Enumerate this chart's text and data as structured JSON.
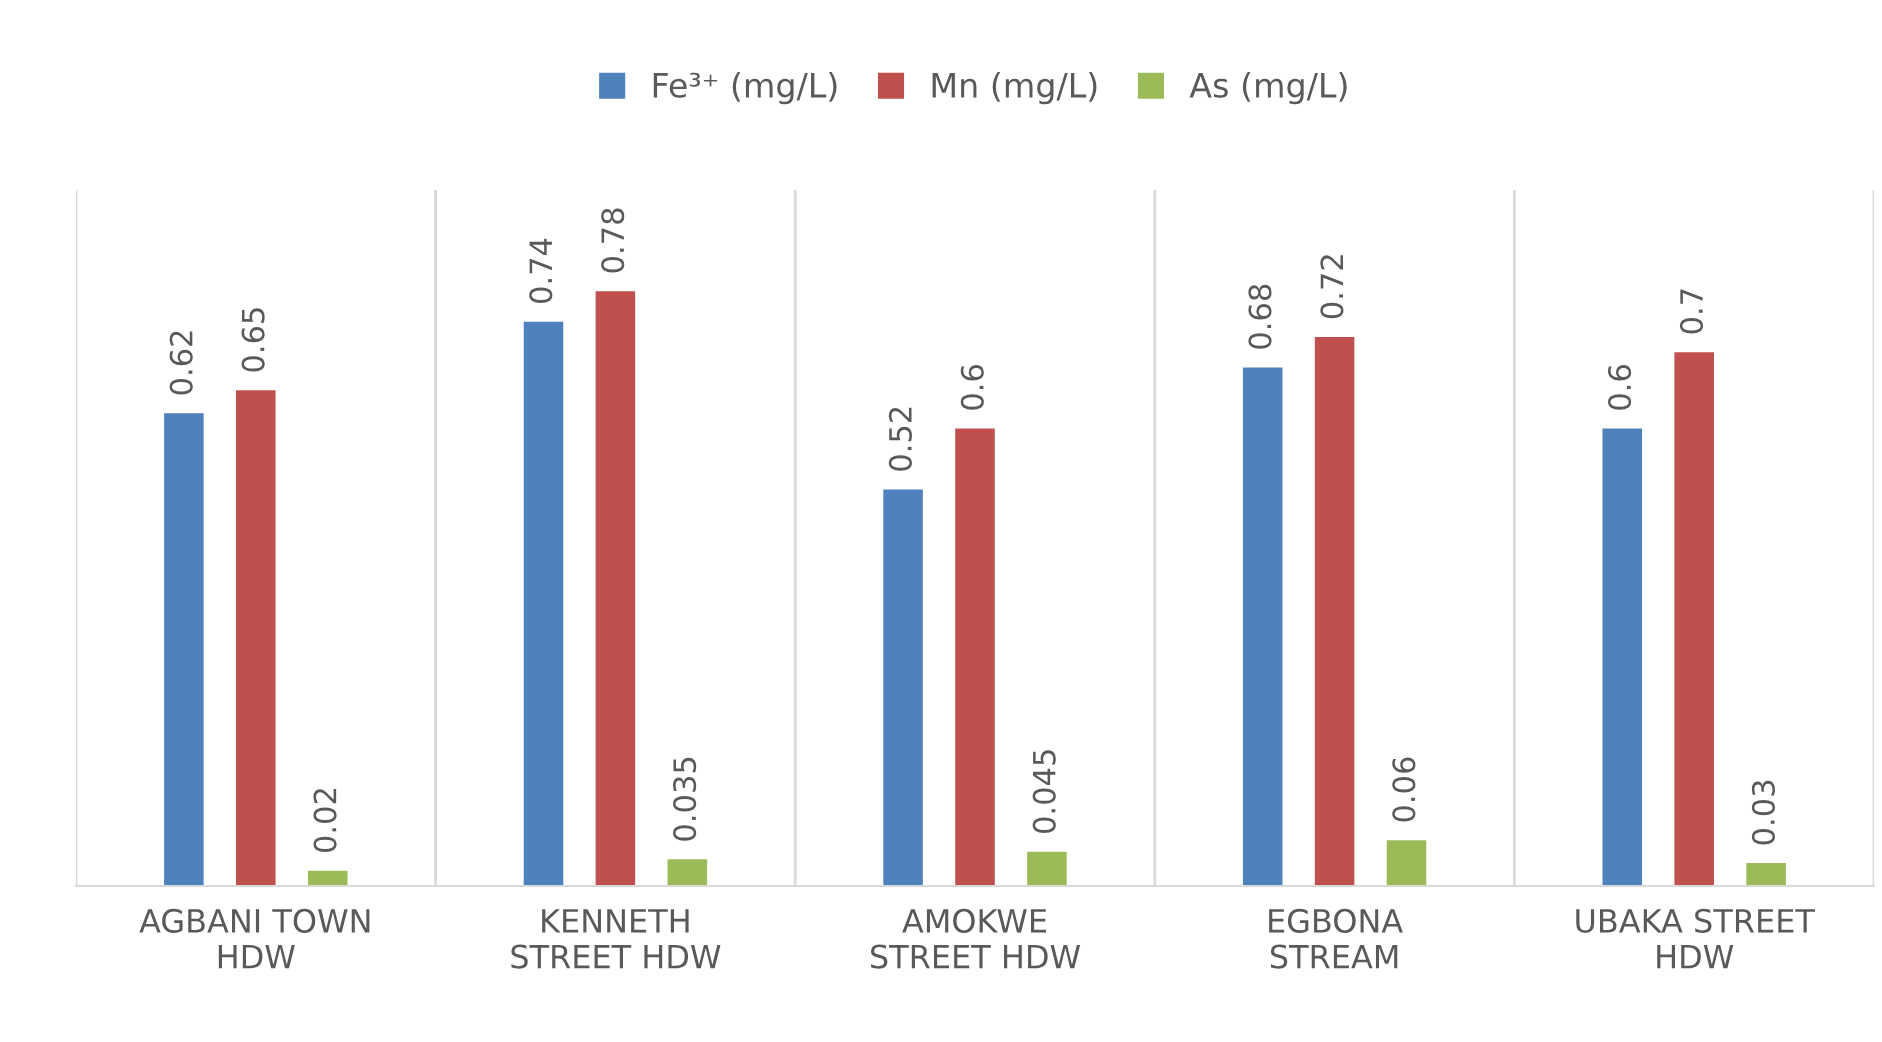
{
  "chart_data": {
    "type": "bar",
    "categories": [
      "AGBANI TOWN\nHDW",
      "KENNETH\nSTREET HDW",
      "AMOKWE\nSTREET HDW",
      "EGBONA\nSTREAM",
      "UBAKA STREET\nHDW"
    ],
    "series": [
      {
        "name": "Fe³⁺ (mg/L)",
        "color": "#4f81bd",
        "values": [
          0.62,
          0.74,
          0.52,
          0.68,
          0.6
        ]
      },
      {
        "name": "Mn (mg/L)",
        "color": "#c0504d",
        "values": [
          0.65,
          0.78,
          0.6,
          0.72,
          0.7
        ]
      },
      {
        "name": "As (mg/L)",
        "color": "#9bbb59",
        "values": [
          0.02,
          0.035,
          0.045,
          0.06,
          0.03
        ]
      }
    ],
    "data_labels": true,
    "grid": "x",
    "legend": "top",
    "tick_labels": "x"
  }
}
